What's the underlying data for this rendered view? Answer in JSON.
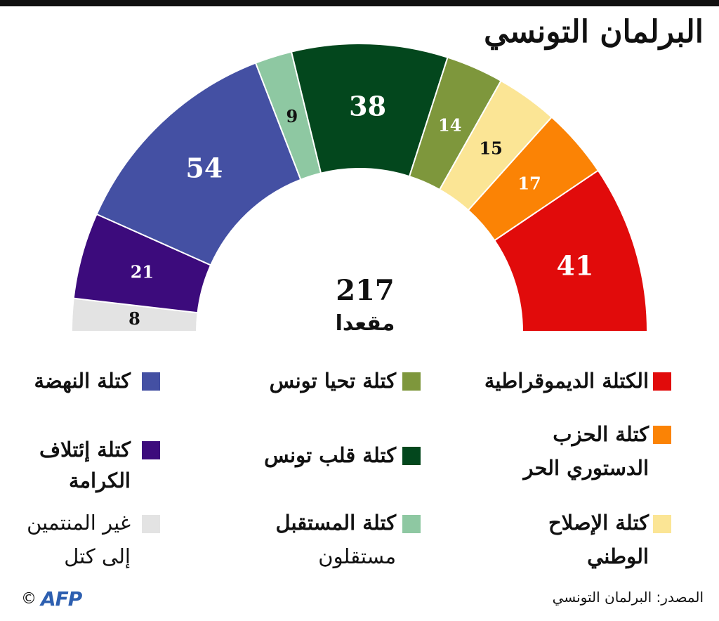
{
  "title": "البرلمان التونسي",
  "chart_data": {
    "type": "parliament",
    "total": "217",
    "total_label": "مقعدا",
    "seats": [
      {
        "name": "غير المنتمين إلى كتل",
        "value": 8,
        "color": "#e3e3e3",
        "text_color": "#111111"
      },
      {
        "name": "كتلة إئتلاف الكرامة",
        "value": 21,
        "color": "#3c0b7c",
        "text_color": "#ffffff"
      },
      {
        "name": "كتلة النهضة",
        "value": 54,
        "color": "#4450a3",
        "text_color": "#ffffff"
      },
      {
        "name": "كتلة المستقبل",
        "value": 9,
        "color": "#8ec8a2",
        "text_color": "#111111"
      },
      {
        "name": "كتلة قلب تونس",
        "value": 38,
        "color": "#03471d",
        "text_color": "#ffffff"
      },
      {
        "name": "كتلة تحيا تونس",
        "value": 14,
        "color": "#7e973c",
        "text_color": "#ffffff"
      },
      {
        "name": "كتلة الإصلاح الوطني",
        "value": 15,
        "color": "#fbe595",
        "text_color": "#111111"
      },
      {
        "name": "كتلة الحزب الدستوري الحر",
        "value": 17,
        "color": "#fb8305",
        "text_color": "#ffffff"
      },
      {
        "name": "الكتلة الديموقراطية",
        "value": 41,
        "color": "#e10b0b",
        "text_color": "#ffffff"
      }
    ]
  },
  "legend": {
    "dem": "الكتلة الديموقراطية",
    "pdl_line1": "كتلة الحزب",
    "pdl_line2": "الدستوري الحر",
    "reform_line1": "كتلة الإصلاح",
    "reform_line2": "الوطني",
    "tahya": "كتلة تحيا تونس",
    "qalb": "كتلة قلب تونس",
    "mustaqbal_line1": "كتلة المستقبل",
    "mustaqbal_line2": "مستقلون",
    "nahdha": "كتلة النهضة",
    "karama_line1": "كتلة إئتلاف",
    "karama_line2": "الكرامة",
    "nonaffil_line1": "غير المنتمين",
    "nonaffil_line2": "إلى كتل"
  },
  "source": "المصدر: البرلمان التونسي",
  "logo": {
    "copyright": "©",
    "brand": "AFP"
  }
}
